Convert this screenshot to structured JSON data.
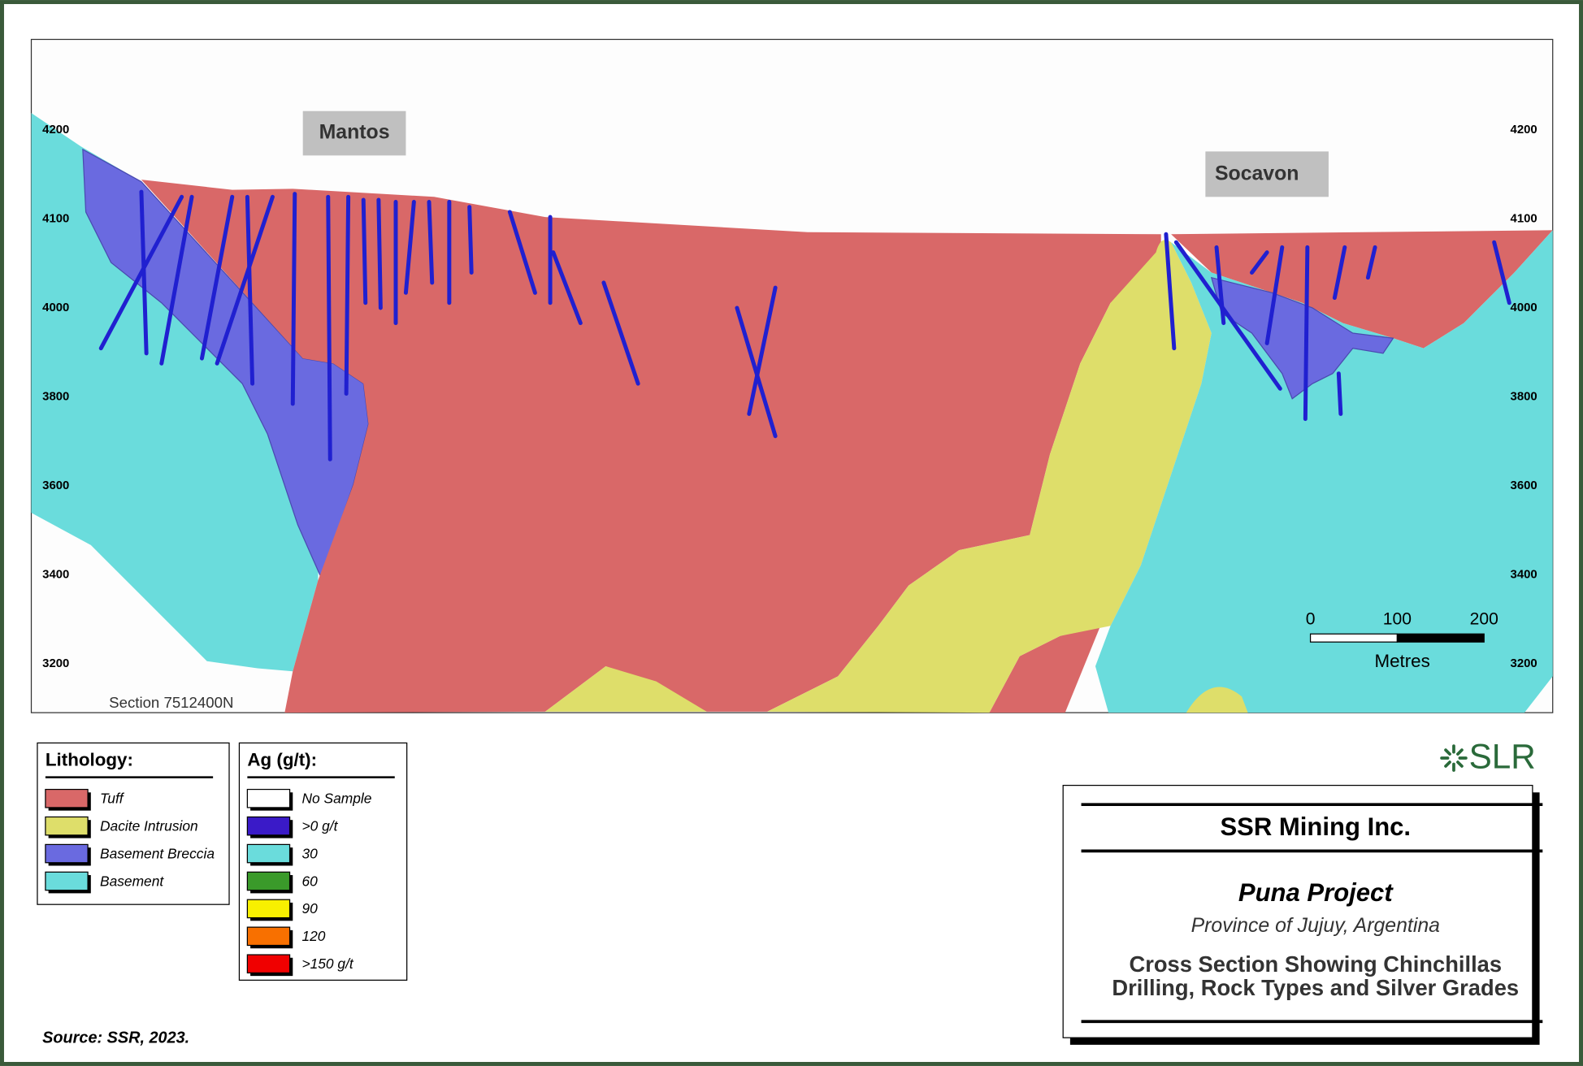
{
  "section": {
    "name": "Section 7512400N",
    "labels": [
      "Mantos",
      "Socavon"
    ],
    "elevations": [
      4200,
      4100,
      4000,
      3800,
      3600,
      3400,
      3200
    ]
  },
  "scale_bar": {
    "ticks": [
      0,
      100,
      200
    ],
    "unit": "Metres"
  },
  "lithology_legend": {
    "title": "Lithology:",
    "items": [
      {
        "label": "Tuff",
        "color": "#d96868"
      },
      {
        "label": "Dacite Intrusion",
        "color": "#dede6a"
      },
      {
        "label": "Basement Breccia",
        "color": "#6a6ae0"
      },
      {
        "label": "Basement",
        "color": "#6adcdc"
      }
    ]
  },
  "grade_legend": {
    "title": "Ag (g/t):",
    "items": [
      {
        "label": "No Sample",
        "color": "#ffffff"
      },
      {
        "label": ">0 g/t",
        "color": "#3a1ac8"
      },
      {
        "label": "30",
        "color": "#6adcdc"
      },
      {
        "label": "60",
        "color": "#3a9a2a"
      },
      {
        "label": "90",
        "color": "#f8f000"
      },
      {
        "label": "120",
        "color": "#f87000"
      },
      {
        "label": ">150 g/t",
        "color": "#f00000"
      }
    ]
  },
  "logo": "SLR",
  "title_block": {
    "company": "SSR Mining Inc.",
    "project": "Puna Project",
    "location": "Province of Jujuy, Argentina",
    "caption_lines": [
      "Cross Section Showing Chinchillas",
      "Drilling, Rock Types and Silver Grades"
    ]
  },
  "source": "Source:  SSR, 2023."
}
